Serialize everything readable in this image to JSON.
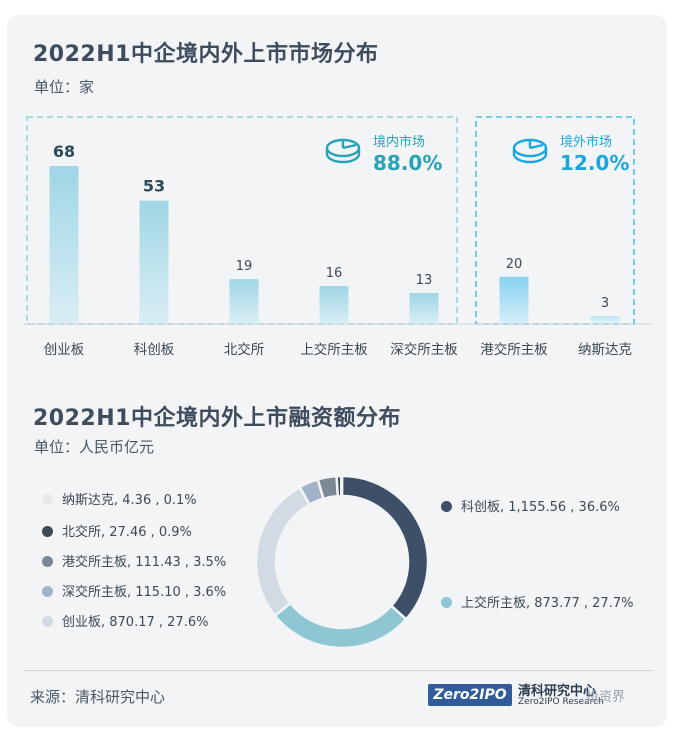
{
  "chart_data": [
    {
      "type": "bar",
      "title": "2022H1中企境内外上市市场分布",
      "unit_label": "单位：家",
      "categories": [
        "创业板",
        "科创板",
        "北交所",
        "上交所主板",
        "深交所主板",
        "港交所主板",
        "纳斯达克"
      ],
      "values": [
        68,
        53,
        19,
        16,
        13,
        20,
        3
      ],
      "groups": [
        {
          "name": "境内市场",
          "share": "88.0%",
          "icon": "pie-chart-icon",
          "categories": [
            "创业板",
            "科创板",
            "北交所",
            "上交所主板",
            "深交所主板"
          ]
        },
        {
          "name": "境外市场",
          "share": "12.0%",
          "icon": "pie-chart-icon",
          "categories": [
            "港交所主板",
            "纳斯达克"
          ]
        }
      ],
      "highlight_bold_labels": [
        68,
        53
      ]
    },
    {
      "type": "pie",
      "title": "2022H1中企境内外上市融资额分布",
      "unit_label": "单位：人民币亿元",
      "slices": [
        {
          "label": "科创板",
          "value": 1155.56,
          "value_text": "1,155.56",
          "percent": "36.6%",
          "color": "#3d5068"
        },
        {
          "label": "上交所主板",
          "value": 873.77,
          "value_text": "873.77",
          "percent": "27.7%",
          "color": "#8ec6d4"
        },
        {
          "label": "创业板",
          "value": 870.17,
          "value_text": "870.17",
          "percent": "27.6%",
          "color": "#d2dae3"
        },
        {
          "label": "深交所主板",
          "value": 115.1,
          "value_text": "115.10",
          "percent": "3.6%",
          "color": "#a2b3c9"
        },
        {
          "label": "港交所主板",
          "value": 111.43,
          "value_text": "111.43",
          "percent": "3.5%",
          "color": "#7c8894"
        },
        {
          "label": "北交所",
          "value": 27.46,
          "value_text": "27.46",
          "percent": "0.9%",
          "color": "#3d4a56"
        },
        {
          "label": "纳斯达克",
          "value": 4.36,
          "value_text": "4.36",
          "percent": "0.1%",
          "color": "#e6e9ec"
        }
      ]
    }
  ],
  "colors": {
    "bar_top": "#9fd6e6",
    "bar_bottom": "#d9eef4",
    "hk_bar_top": "#86d2f3",
    "accent_teal": "#26a3b8",
    "accent_blue": "#1aa7e0",
    "dash_domestic": "#8fcfd9",
    "dash_overseas": "#4fc0e6"
  },
  "footer": {
    "source": "来源：清科研究中心",
    "logo_text": "Zero2IPO",
    "logo_cn": "清科研究中心",
    "logo_en": "Zero2IPO Research",
    "watermark": "投资界"
  }
}
